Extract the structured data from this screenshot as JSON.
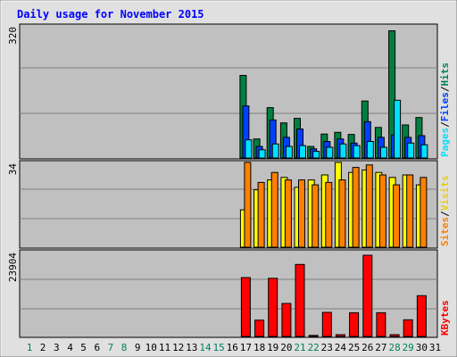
{
  "chart_data": [
    {
      "type": "bar",
      "title": "Daily usage for November 2015",
      "categories": [
        "1",
        "2",
        "3",
        "4",
        "5",
        "6",
        "7",
        "8",
        "9",
        "10",
        "11",
        "12",
        "13",
        "14",
        "15",
        "16",
        "17",
        "18",
        "19",
        "20",
        "21",
        "22",
        "23",
        "24",
        "25",
        "26",
        "27",
        "28",
        "29",
        "30",
        "31"
      ],
      "weekend_days": [
        "1",
        "7",
        "8",
        "14",
        "15",
        "21",
        "22",
        "28",
        "29"
      ],
      "ymax_label": "320",
      "ylim": [
        0,
        320
      ],
      "legend": [
        "Pages",
        "Files",
        "Hits"
      ],
      "series": [
        {
          "name": "Hits",
          "color": "#008040",
          "values": [
            0,
            0,
            0,
            0,
            0,
            0,
            0,
            0,
            0,
            0,
            0,
            0,
            0,
            0,
            0,
            0,
            200,
            46,
            122,
            85,
            96,
            28,
            58,
            62,
            57,
            138,
            74,
            308,
            80,
            98,
            0
          ]
        },
        {
          "name": "Files",
          "color": "#0040ff",
          "values": [
            0,
            0,
            0,
            0,
            0,
            0,
            0,
            0,
            0,
            0,
            0,
            0,
            0,
            0,
            0,
            0,
            126,
            28,
            92,
            50,
            70,
            22,
            40,
            46,
            36,
            88,
            50,
            56,
            50,
            54,
            0
          ]
        },
        {
          "name": "Pages",
          "color": "#00e0ff",
          "values": [
            0,
            0,
            0,
            0,
            0,
            0,
            0,
            0,
            0,
            0,
            0,
            0,
            0,
            0,
            0,
            0,
            44,
            20,
            34,
            28,
            30,
            16,
            26,
            34,
            30,
            40,
            26,
            140,
            36,
            32,
            0
          ]
        }
      ]
    },
    {
      "type": "bar",
      "ymax_label": "34",
      "ylim": [
        0,
        34
      ],
      "legend": [
        "Sites",
        "Visits"
      ],
      "series": [
        {
          "name": "Visits",
          "color": "#ffff00",
          "values": [
            0,
            0,
            0,
            0,
            0,
            0,
            0,
            0,
            0,
            0,
            0,
            0,
            0,
            0,
            0,
            0,
            15,
            23,
            27,
            28,
            24,
            27,
            29,
            34,
            30,
            31,
            30,
            28,
            29,
            25,
            0
          ]
        },
        {
          "name": "Sites",
          "color": "#ff8000",
          "values": [
            0,
            0,
            0,
            0,
            0,
            0,
            0,
            0,
            0,
            0,
            0,
            0,
            0,
            0,
            0,
            0,
            34,
            26,
            30,
            27,
            27,
            25,
            26,
            27,
            32,
            33,
            29,
            25,
            29,
            28,
            0
          ]
        }
      ]
    },
    {
      "type": "bar",
      "ymax_label": "23904",
      "ylim": [
        0,
        23904
      ],
      "legend": [
        "KBytes"
      ],
      "series": [
        {
          "name": "KBytes",
          "color": "#ff0000",
          "values": [
            0,
            0,
            0,
            0,
            0,
            0,
            0,
            0,
            0,
            0,
            0,
            0,
            0,
            0,
            0,
            0,
            16600,
            4600,
            16400,
            9300,
            20300,
            300,
            6800,
            500,
            6700,
            22900,
            6700,
            500,
            4700,
            11500,
            0
          ]
        }
      ]
    }
  ],
  "colors": {
    "title": "#0000ff",
    "weekday_label": "#000000",
    "weekend_label": "#00805c",
    "panel_bg": "#c0c0c0",
    "page_bg": "#e0e0e0",
    "legend_pages": "#00e0ff",
    "legend_files": "#0040ff",
    "legend_hits": "#00805c",
    "legend_sites": "#ff8000",
    "legend_visits": "#e8d000",
    "legend_kbytes": "#ff0000"
  }
}
